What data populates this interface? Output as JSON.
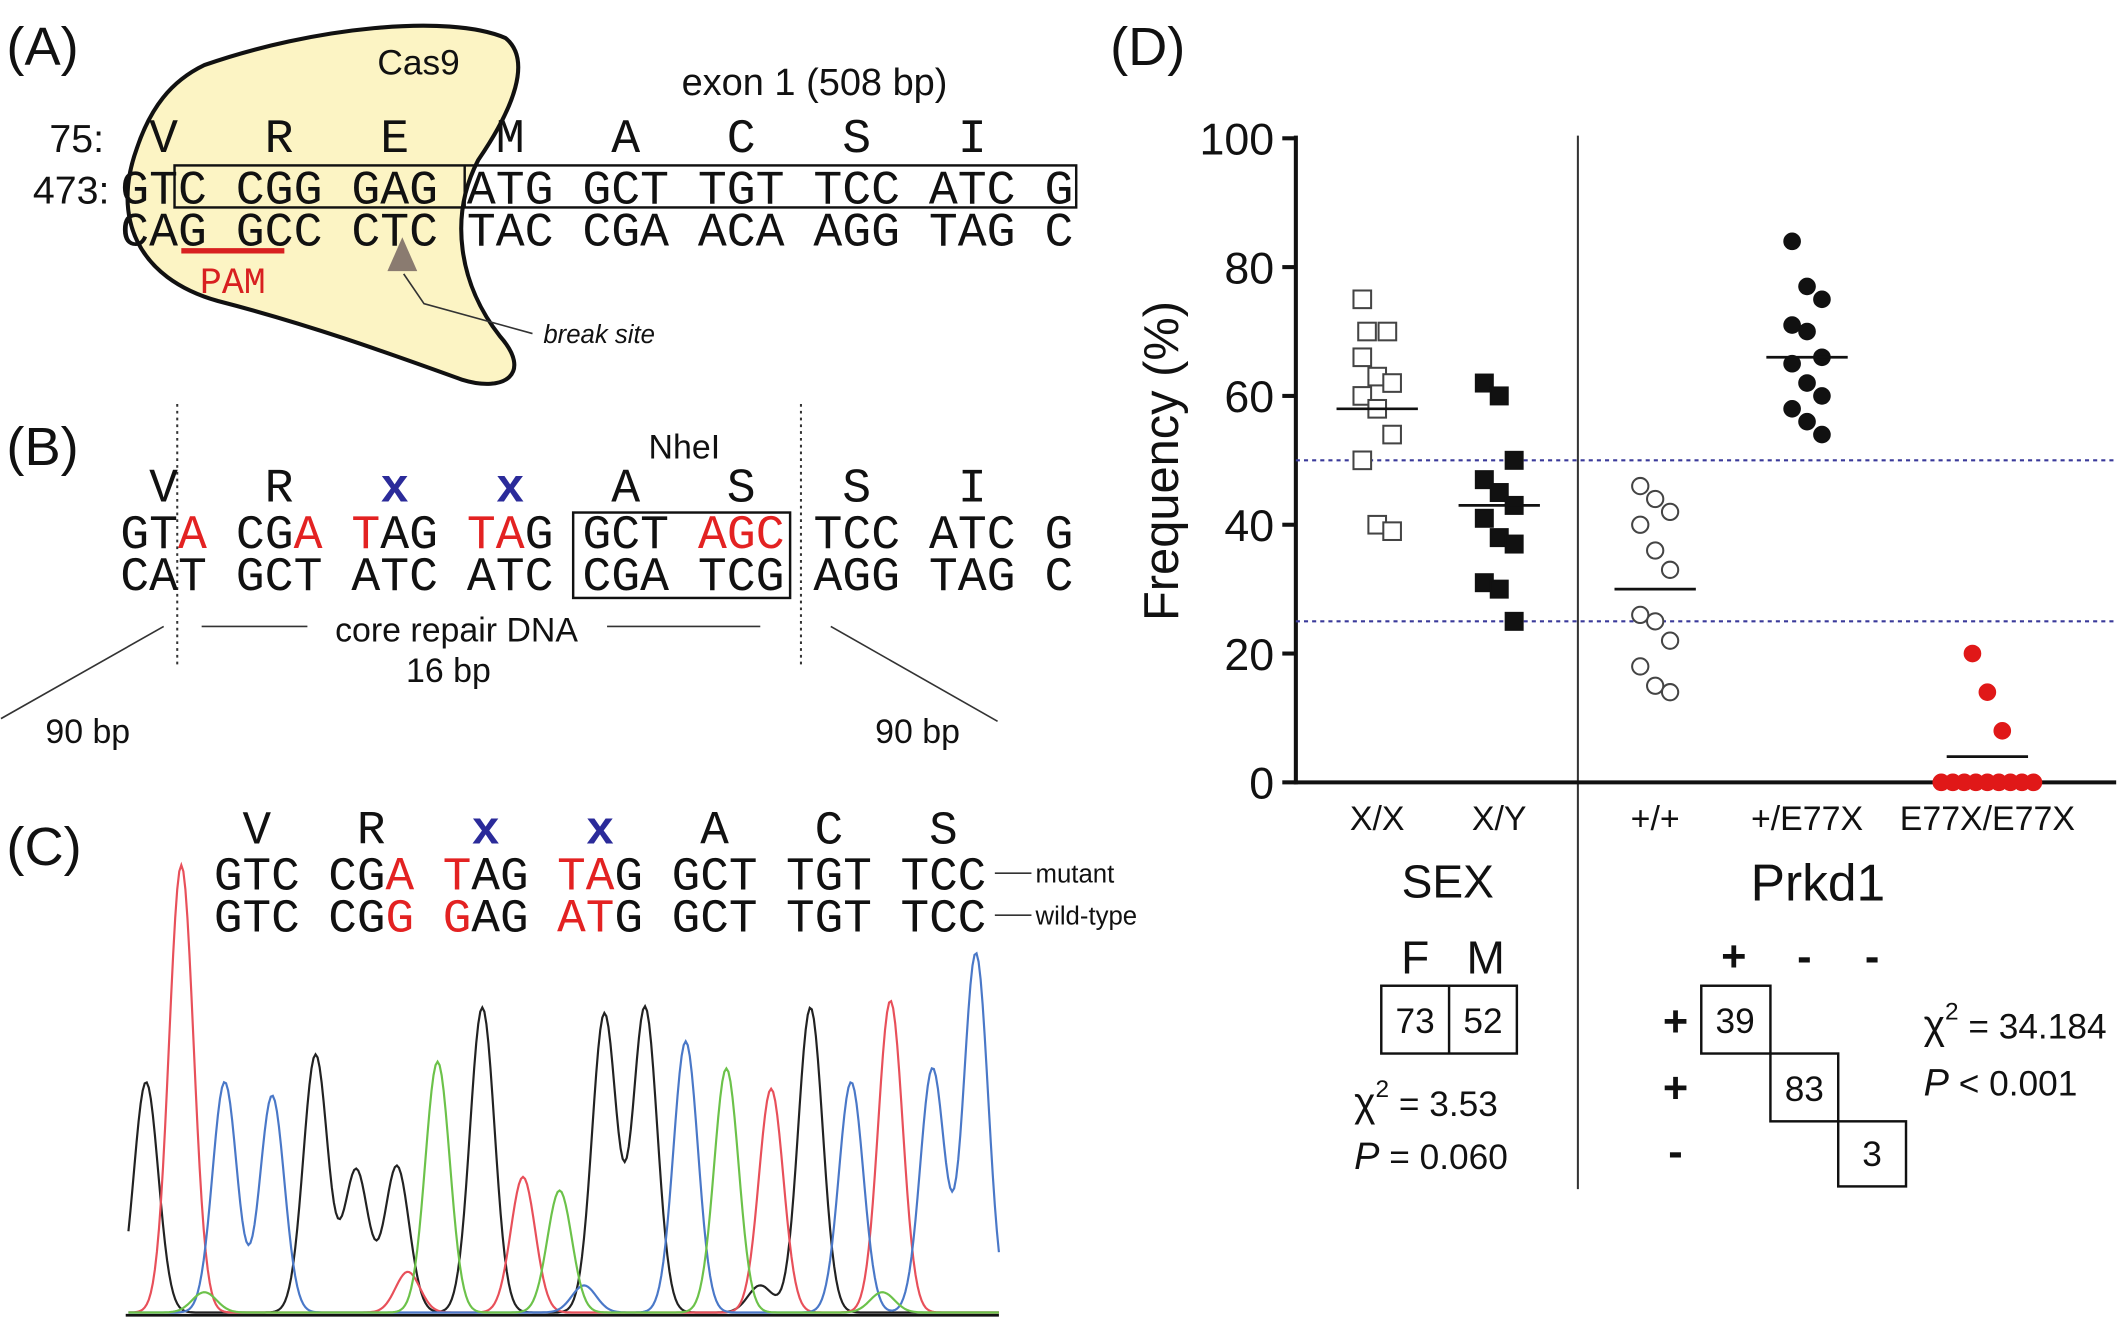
{
  "panel_a": {
    "label": "(A)",
    "protein_label": "Cas9",
    "exon_label": "exon 1 (508 bp)",
    "aa_start": "75:",
    "nt_start": "473:",
    "amino_acids": [
      "V",
      "R",
      "E",
      "M",
      "A",
      "C",
      "S",
      "I"
    ],
    "top_strand": "GTC CGG GAG ATG GCT TGT TCC ATC G",
    "bottom_strand": "CAG GCC CTC TAC CGA ACA AGG TAG C",
    "pam_label": "PAM",
    "break_label": "break site"
  },
  "panel_b": {
    "label": "(B)",
    "enzyme_label": "NheI",
    "amino_acids": [
      {
        "text": "V"
      },
      {
        "text": "R"
      },
      {
        "text": "x",
        "color": "#2b2b9a"
      },
      {
        "text": "x",
        "color": "#2b2b9a"
      },
      {
        "text": "A"
      },
      {
        "text": "S"
      },
      {
        "text": "S"
      },
      {
        "text": "I"
      }
    ],
    "top_strand": [
      {
        "text": "GT"
      },
      {
        "text": "A",
        "color": "#e32222"
      },
      {
        "text": " CG"
      },
      {
        "text": "A",
        "color": "#e32222"
      },
      {
        "text": " "
      },
      {
        "text": "T",
        "color": "#e32222"
      },
      {
        "text": "AG "
      },
      {
        "text": "TA",
        "color": "#e32222"
      },
      {
        "text": "G GCT "
      },
      {
        "text": "AGC",
        "color": "#e32222"
      },
      {
        "text": " TCC ATC G"
      }
    ],
    "bottom_strand": "CAT GCT ATC ATC CGA TCG AGG TAG C",
    "core_label": "core repair DNA",
    "core_length": "16 bp",
    "arm_left": "90 bp",
    "arm_right": "90 bp"
  },
  "panel_c": {
    "label": "(C)",
    "amino_acids": [
      {
        "text": "V"
      },
      {
        "text": "R"
      },
      {
        "text": "x",
        "color": "#2b2b9a"
      },
      {
        "text": "x",
        "color": "#2b2b9a"
      },
      {
        "text": "A"
      },
      {
        "text": "C"
      },
      {
        "text": "S"
      }
    ],
    "mutant_strand": [
      {
        "text": "GTC CG"
      },
      {
        "text": "A",
        "color": "#e32222"
      },
      {
        "text": " "
      },
      {
        "text": "T",
        "color": "#e32222"
      },
      {
        "text": "AG "
      },
      {
        "text": "TA",
        "color": "#e32222"
      },
      {
        "text": "G GCT TGT TCC"
      }
    ],
    "wildtype_strand": [
      {
        "text": "GTC CG"
      },
      {
        "text": "G",
        "color": "#e32222"
      },
      {
        "text": " "
      },
      {
        "text": "G",
        "color": "#e32222"
      },
      {
        "text": "AG "
      },
      {
        "text": "AT",
        "color": "#e32222"
      },
      {
        "text": "G GCT TGT TCC"
      }
    ],
    "mutant_label": "mutant",
    "wildtype_label": "wild-type"
  },
  "chart_data": {
    "type": "strip",
    "label": "(D)",
    "ylabel": "Frequency (%)",
    "categories": [
      "X/X",
      "X/Y",
      "+/+",
      "+/E77X",
      "E77X/E77X"
    ],
    "values": [
      [
        75,
        70,
        70,
        66,
        63,
        62,
        60,
        58,
        54,
        50,
        40,
        39
      ],
      [
        62,
        60,
        50,
        47,
        45,
        43,
        41,
        38,
        37,
        31,
        30,
        25
      ],
      [
        46,
        44,
        42,
        40,
        36,
        33,
        26,
        25,
        22,
        18,
        15,
        14
      ],
      [
        84,
        77,
        75,
        71,
        70,
        66,
        65,
        62,
        60,
        58,
        56,
        54
      ],
      [
        20,
        14,
        8,
        0,
        0,
        0,
        0,
        0,
        0,
        0,
        0,
        0
      ]
    ],
    "medians": [
      58,
      43,
      30,
      66,
      4
    ],
    "markers": [
      "open-square",
      "filled-square",
      "open-circle",
      "filled-circle",
      "filled-circle"
    ],
    "colors": [
      "#444444",
      "#111111",
      "#444444",
      "#111111",
      "#e01818"
    ],
    "reference_lines": [
      50,
      25
    ],
    "ylim": [
      0,
      100
    ],
    "yticks": [
      0,
      20,
      40,
      60,
      80,
      100
    ],
    "group_labels": [
      "SEX",
      "Prkd1"
    ]
  },
  "tables": {
    "sex": {
      "columns": [
        "F",
        "M"
      ],
      "values": [
        "73",
        "52"
      ],
      "chi_symbol": "χ",
      "chi_exponent": "2",
      "chi_value": " = 3.53",
      "p_symbol": "P",
      "p_value": " = 0.060"
    },
    "prkd1": {
      "columns": [
        "+",
        "-",
        "-"
      ],
      "rows": [
        "+",
        "+",
        "-"
      ],
      "values": [
        "39",
        "83",
        "3"
      ],
      "chi_symbol": "χ",
      "chi_exponent": "2",
      "chi_value": " = 34.184",
      "p_symbol": "P",
      "p_value": " < 0.001"
    }
  }
}
